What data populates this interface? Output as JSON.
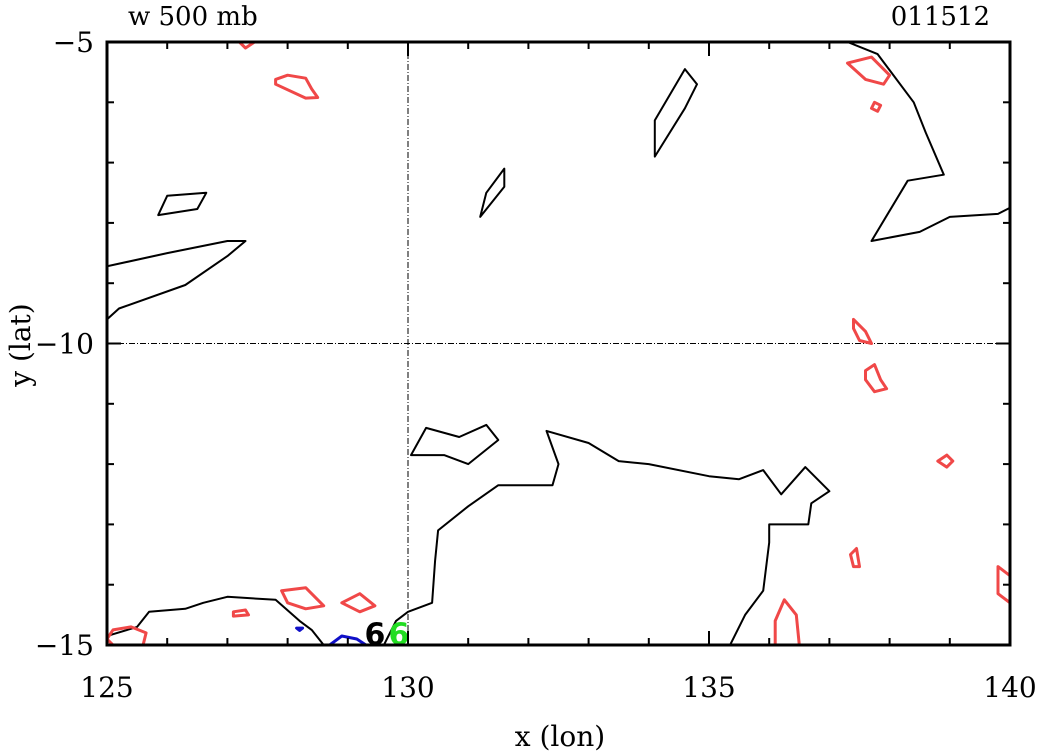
{
  "chart_data": {
    "type": "contour",
    "title_left": "w 500 mb",
    "title_right": "011512",
    "xlabel": "x (lon)",
    "ylabel": "y (lat)",
    "xlim": [
      125,
      140
    ],
    "ylim": [
      -15,
      -5
    ],
    "xticks": [
      125,
      130,
      135,
      140
    ],
    "yticks": [
      -15,
      -10,
      -5
    ],
    "reference_lines": {
      "x": 130,
      "y": -10
    },
    "colors": {
      "zero": "#000000",
      "positive": "#f04848",
      "negative": "#1010c8",
      "marker": "#22dd22"
    },
    "markers": [
      {
        "label": "6",
        "x": 129.45,
        "y": -14.78,
        "color": "#000000"
      },
      {
        "label": "6",
        "x": 129.85,
        "y": -14.78,
        "color": "#22dd22"
      }
    ],
    "contours": [
      {
        "level": 0,
        "color": "#000000",
        "closed": false,
        "points": [
          [
            125.0,
            -9.6
          ],
          [
            125.2,
            -9.42
          ],
          [
            126.3,
            -9.03
          ],
          [
            127.0,
            -8.55
          ],
          [
            127.3,
            -8.3
          ],
          [
            127.0,
            -8.3
          ],
          [
            126.0,
            -8.5
          ],
          [
            125.0,
            -8.72
          ]
        ]
      },
      {
        "level": 0,
        "color": "#000000",
        "closed": true,
        "points": [
          [
            125.85,
            -7.87
          ],
          [
            126.5,
            -7.77
          ],
          [
            126.65,
            -7.5
          ],
          [
            126.0,
            -7.55
          ]
        ]
      },
      {
        "level": 0,
        "color": "#000000",
        "closed": true,
        "points": [
          [
            131.2,
            -7.9
          ],
          [
            131.6,
            -7.4
          ],
          [
            131.6,
            -7.1
          ],
          [
            131.3,
            -7.5
          ]
        ]
      },
      {
        "level": 0,
        "color": "#000000",
        "closed": true,
        "points": [
          [
            134.1,
            -6.9
          ],
          [
            134.6,
            -6.1
          ],
          [
            134.8,
            -5.7
          ],
          [
            134.6,
            -5.45
          ],
          [
            134.1,
            -6.3
          ]
        ]
      },
      {
        "level": 0,
        "color": "#000000",
        "closed": false,
        "points": [
          [
            137.3,
            -5.0
          ],
          [
            137.8,
            -5.2
          ],
          [
            138.4,
            -6.0
          ],
          [
            138.6,
            -6.5
          ],
          [
            138.9,
            -7.2
          ],
          [
            138.3,
            -7.3
          ],
          [
            138.0,
            -7.8
          ],
          [
            137.7,
            -8.3
          ],
          [
            138.5,
            -8.15
          ],
          [
            139.0,
            -7.9
          ],
          [
            139.8,
            -7.85
          ],
          [
            140.0,
            -7.75
          ]
        ]
      },
      {
        "level": 0,
        "color": "#000000",
        "closed": false,
        "points": [
          [
            125.0,
            -14.85
          ],
          [
            125.5,
            -14.7
          ],
          [
            125.7,
            -14.45
          ],
          [
            126.3,
            -14.4
          ],
          [
            126.6,
            -14.3
          ],
          [
            127.0,
            -14.2
          ],
          [
            127.8,
            -14.25
          ],
          [
            128.2,
            -14.6
          ],
          [
            128.4,
            -14.75
          ],
          [
            128.6,
            -15.0
          ]
        ]
      },
      {
        "level": 0,
        "color": "#000000",
        "closed": false,
        "points": [
          [
            129.6,
            -15.0
          ],
          [
            129.8,
            -14.6
          ],
          [
            130.0,
            -14.45
          ],
          [
            130.4,
            -14.3
          ],
          [
            130.45,
            -13.6
          ],
          [
            130.5,
            -13.1
          ],
          [
            131.0,
            -12.7
          ],
          [
            131.5,
            -12.35
          ],
          [
            132.0,
            -12.35
          ],
          [
            132.4,
            -12.35
          ],
          [
            132.5,
            -12.0
          ],
          [
            132.3,
            -11.45
          ],
          [
            133.0,
            -11.65
          ],
          [
            133.5,
            -11.95
          ],
          [
            134.0,
            -12.0
          ],
          [
            135.0,
            -12.2
          ],
          [
            135.5,
            -12.25
          ],
          [
            135.9,
            -12.1
          ],
          [
            136.2,
            -12.5
          ],
          [
            136.6,
            -12.05
          ],
          [
            137.0,
            -12.45
          ],
          [
            136.7,
            -12.65
          ],
          [
            136.65,
            -13.0
          ],
          [
            136.0,
            -13.0
          ],
          [
            136.0,
            -13.3
          ],
          [
            135.9,
            -14.1
          ],
          [
            135.6,
            -14.5
          ],
          [
            135.35,
            -15.0
          ]
        ]
      },
      {
        "level": 0,
        "color": "#000000",
        "closed": true,
        "points": [
          [
            130.05,
            -11.85
          ],
          [
            130.3,
            -11.4
          ],
          [
            130.85,
            -11.55
          ],
          [
            131.3,
            -11.35
          ],
          [
            131.5,
            -11.6
          ],
          [
            131.0,
            -12.0
          ],
          [
            130.6,
            -11.85
          ]
        ]
      },
      {
        "level": 0.1,
        "color": "#f04848",
        "closed": true,
        "points": [
          [
            127.2,
            -5.0
          ],
          [
            127.3,
            -5.1
          ],
          [
            127.45,
            -5.0
          ]
        ]
      },
      {
        "level": 0.1,
        "color": "#f04848",
        "closed": true,
        "points": [
          [
            127.8,
            -5.7
          ],
          [
            128.3,
            -5.93
          ],
          [
            128.5,
            -5.92
          ],
          [
            128.4,
            -5.78
          ],
          [
            128.3,
            -5.6
          ],
          [
            128.0,
            -5.55
          ],
          [
            127.8,
            -5.62
          ]
        ]
      },
      {
        "level": 0.1,
        "color": "#f04848",
        "closed": true,
        "points": [
          [
            137.3,
            -5.35
          ],
          [
            137.7,
            -5.25
          ],
          [
            138.0,
            -5.55
          ],
          [
            137.9,
            -5.7
          ],
          [
            137.6,
            -5.62
          ]
        ]
      },
      {
        "level": 0.1,
        "color": "#f04848",
        "closed": true,
        "points": [
          [
            137.75,
            -6.0
          ],
          [
            137.85,
            -6.05
          ],
          [
            137.8,
            -6.15
          ],
          [
            137.7,
            -6.1
          ]
        ]
      },
      {
        "level": 0.1,
        "color": "#f04848",
        "closed": true,
        "points": [
          [
            137.4,
            -9.6
          ],
          [
            137.6,
            -9.8
          ],
          [
            137.7,
            -10.0
          ],
          [
            137.5,
            -9.95
          ],
          [
            137.4,
            -9.75
          ]
        ]
      },
      {
        "level": 0.1,
        "color": "#f04848",
        "closed": true,
        "points": [
          [
            137.6,
            -10.45
          ],
          [
            137.75,
            -10.35
          ],
          [
            137.85,
            -10.6
          ],
          [
            137.95,
            -10.75
          ],
          [
            137.75,
            -10.8
          ],
          [
            137.6,
            -10.6
          ]
        ]
      },
      {
        "level": 0.1,
        "color": "#f04848",
        "closed": true,
        "points": [
          [
            138.8,
            -11.95
          ],
          [
            138.95,
            -11.85
          ],
          [
            139.05,
            -11.95
          ],
          [
            138.95,
            -12.05
          ]
        ]
      },
      {
        "level": 0.1,
        "color": "#f04848",
        "closed": true,
        "points": [
          [
            137.35,
            -13.5
          ],
          [
            137.45,
            -13.4
          ],
          [
            137.5,
            -13.7
          ],
          [
            137.4,
            -13.7
          ]
        ]
      },
      {
        "level": 0.1,
        "color": "#f04848",
        "closed": true,
        "points": [
          [
            139.8,
            -13.7
          ],
          [
            140.0,
            -13.85
          ],
          [
            140.0,
            -14.3
          ],
          [
            139.8,
            -14.15
          ]
        ]
      },
      {
        "level": 0.1,
        "color": "#f04848",
        "closed": false,
        "points": [
          [
            136.1,
            -15.0
          ],
          [
            136.1,
            -14.6
          ],
          [
            136.25,
            -14.25
          ],
          [
            136.45,
            -14.5
          ],
          [
            136.5,
            -15.0
          ]
        ]
      },
      {
        "level": 0.1,
        "color": "#f04848",
        "closed": true,
        "points": [
          [
            127.9,
            -14.1
          ],
          [
            128.3,
            -14.05
          ],
          [
            128.6,
            -14.35
          ],
          [
            128.3,
            -14.4
          ],
          [
            128.0,
            -14.3
          ]
        ]
      },
      {
        "level": 0.1,
        "color": "#f04848",
        "closed": true,
        "points": [
          [
            128.9,
            -14.3
          ],
          [
            129.2,
            -14.15
          ],
          [
            129.45,
            -14.35
          ],
          [
            129.2,
            -14.45
          ]
        ]
      },
      {
        "level": 0.1,
        "color": "#f04848",
        "closed": true,
        "points": [
          [
            127.1,
            -14.45
          ],
          [
            127.3,
            -14.42
          ],
          [
            127.35,
            -14.5
          ],
          [
            127.1,
            -14.52
          ]
        ]
      },
      {
        "level": 0.1,
        "color": "#f04848",
        "closed": true,
        "points": [
          [
            125.1,
            -14.75
          ],
          [
            125.4,
            -14.7
          ],
          [
            125.65,
            -14.8
          ],
          [
            125.6,
            -15.0
          ],
          [
            125.1,
            -15.0
          ],
          [
            125.0,
            -14.9
          ]
        ]
      },
      {
        "level": -0.1,
        "color": "#1010c8",
        "closed": false,
        "points": [
          [
            128.7,
            -15.0
          ],
          [
            128.9,
            -14.85
          ],
          [
            129.15,
            -14.9
          ],
          [
            129.3,
            -15.0
          ]
        ]
      },
      {
        "level": -0.1,
        "color": "#1010c8",
        "closed": true,
        "points": [
          [
            128.15,
            -14.72
          ],
          [
            128.25,
            -14.72
          ],
          [
            128.2,
            -14.76
          ]
        ]
      }
    ]
  }
}
